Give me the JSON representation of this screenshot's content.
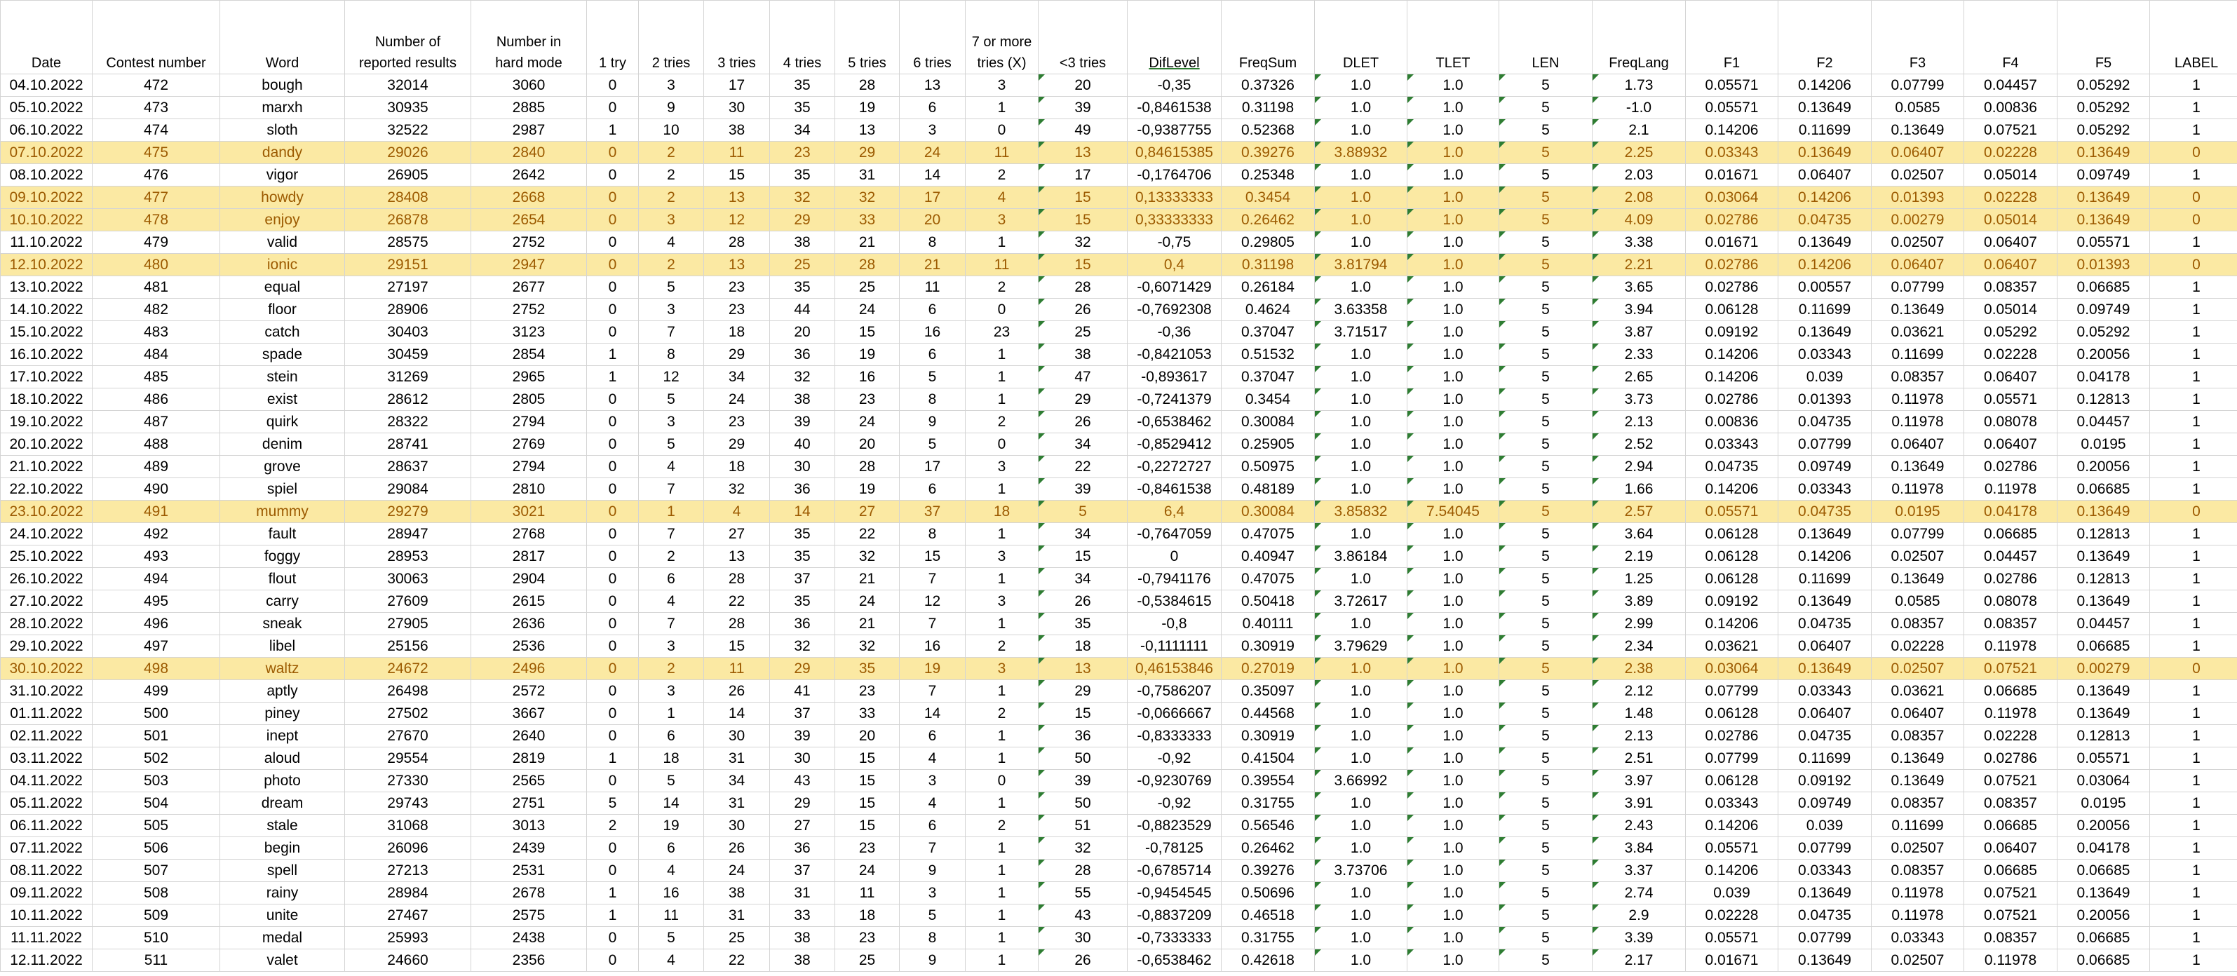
{
  "headers": [
    "Date",
    "Contest number",
    "Word",
    "Number in\nreported results",
    "Number in\nhard mode",
    "1 try",
    "2 tries",
    "3 tries",
    "4 tries",
    "5 tries",
    "6 tries",
    "7 or more\ntries (X)",
    "<3 tries",
    "DifLevel",
    "FreqSum",
    "DLET",
    "TLET",
    "LEN",
    "FreqLang",
    "F1",
    "F2",
    "F3",
    "F4",
    "F5",
    "LABEL"
  ],
  "header_display": [
    "Date",
    "Contest number",
    "Word",
    "Number of\nreported results",
    "Number in\nhard mode",
    "1 try",
    "2 tries",
    "3 tries",
    "4 tries",
    "5 tries",
    "6 tries",
    "7 or more\ntries (X)",
    "<3 tries",
    "DifLevel",
    "FreqSum",
    "DLET",
    "TLET",
    "LEN",
    "FreqLang",
    "F1",
    "F2",
    "F3",
    "F4",
    "F5",
    "LABEL"
  ],
  "rows": [
    [
      "04.10.2022",
      "472",
      "bough",
      "32014",
      "3060",
      "0",
      "3",
      "17",
      "35",
      "28",
      "13",
      "3",
      "20",
      "-0,35",
      "0.37326",
      "1.0",
      "1.0",
      "5",
      "1.73",
      "0.05571",
      "0.14206",
      "0.07799",
      "0.04457",
      "0.05292",
      "1"
    ],
    [
      "05.10.2022",
      "473",
      "marxh",
      "30935",
      "2885",
      "0",
      "9",
      "30",
      "35",
      "19",
      "6",
      "1",
      "39",
      "-0,8461538",
      "0.31198",
      "1.0",
      "1.0",
      "5",
      "-1.0",
      "0.05571",
      "0.13649",
      "0.0585",
      "0.00836",
      "0.05292",
      "1"
    ],
    [
      "06.10.2022",
      "474",
      "sloth",
      "32522",
      "2987",
      "1",
      "10",
      "38",
      "34",
      "13",
      "3",
      "0",
      "49",
      "-0,9387755",
      "0.52368",
      "1.0",
      "1.0",
      "5",
      "2.1",
      "0.14206",
      "0.11699",
      "0.13649",
      "0.07521",
      "0.05292",
      "1"
    ],
    [
      "07.10.2022",
      "475",
      "dandy",
      "29026",
      "2840",
      "0",
      "2",
      "11",
      "23",
      "29",
      "24",
      "11",
      "13",
      "0,84615385",
      "0.39276",
      "3.88932",
      "1.0",
      "5",
      "2.25",
      "0.03343",
      "0.13649",
      "0.06407",
      "0.02228",
      "0.13649",
      "0"
    ],
    [
      "08.10.2022",
      "476",
      "vigor",
      "26905",
      "2642",
      "0",
      "2",
      "15",
      "35",
      "31",
      "14",
      "2",
      "17",
      "-0,1764706",
      "0.25348",
      "1.0",
      "1.0",
      "5",
      "2.03",
      "0.01671",
      "0.06407",
      "0.02507",
      "0.05014",
      "0.09749",
      "1"
    ],
    [
      "09.10.2022",
      "477",
      "howdy",
      "28408",
      "2668",
      "0",
      "2",
      "13",
      "32",
      "32",
      "17",
      "4",
      "15",
      "0,13333333",
      "0.3454",
      "1.0",
      "1.0",
      "5",
      "2.08",
      "0.03064",
      "0.14206",
      "0.01393",
      "0.02228",
      "0.13649",
      "0"
    ],
    [
      "10.10.2022",
      "478",
      "enjoy",
      "26878",
      "2654",
      "0",
      "3",
      "12",
      "29",
      "33",
      "20",
      "3",
      "15",
      "0,33333333",
      "0.26462",
      "1.0",
      "1.0",
      "5",
      "4.09",
      "0.02786",
      "0.04735",
      "0.00279",
      "0.05014",
      "0.13649",
      "0"
    ],
    [
      "11.10.2022",
      "479",
      "valid",
      "28575",
      "2752",
      "0",
      "4",
      "28",
      "38",
      "21",
      "8",
      "1",
      "32",
      "-0,75",
      "0.29805",
      "1.0",
      "1.0",
      "5",
      "3.38",
      "0.01671",
      "0.13649",
      "0.02507",
      "0.06407",
      "0.05571",
      "1"
    ],
    [
      "12.10.2022",
      "480",
      "ionic",
      "29151",
      "2947",
      "0",
      "2",
      "13",
      "25",
      "28",
      "21",
      "11",
      "15",
      "0,4",
      "0.31198",
      "3.81794",
      "1.0",
      "5",
      "2.21",
      "0.02786",
      "0.14206",
      "0.06407",
      "0.06407",
      "0.01393",
      "0"
    ],
    [
      "13.10.2022",
      "481",
      "equal",
      "27197",
      "2677",
      "0",
      "5",
      "23",
      "35",
      "25",
      "11",
      "2",
      "28",
      "-0,6071429",
      "0.26184",
      "1.0",
      "1.0",
      "5",
      "3.65",
      "0.02786",
      "0.00557",
      "0.07799",
      "0.08357",
      "0.06685",
      "1"
    ],
    [
      "14.10.2022",
      "482",
      "floor",
      "28906",
      "2752",
      "0",
      "3",
      "23",
      "44",
      "24",
      "6",
      "0",
      "26",
      "-0,7692308",
      "0.4624",
      "3.63358",
      "1.0",
      "5",
      "3.94",
      "0.06128",
      "0.11699",
      "0.13649",
      "0.05014",
      "0.09749",
      "1"
    ],
    [
      "15.10.2022",
      "483",
      "catch",
      "30403",
      "3123",
      "0",
      "7",
      "18",
      "20",
      "15",
      "16",
      "23",
      "25",
      "-0,36",
      "0.37047",
      "3.71517",
      "1.0",
      "5",
      "3.87",
      "0.09192",
      "0.13649",
      "0.03621",
      "0.05292",
      "0.05292",
      "1"
    ],
    [
      "16.10.2022",
      "484",
      "spade",
      "30459",
      "2854",
      "1",
      "8",
      "29",
      "36",
      "19",
      "6",
      "1",
      "38",
      "-0,8421053",
      "0.51532",
      "1.0",
      "1.0",
      "5",
      "2.33",
      "0.14206",
      "0.03343",
      "0.11699",
      "0.02228",
      "0.20056",
      "1"
    ],
    [
      "17.10.2022",
      "485",
      "stein",
      "31269",
      "2965",
      "1",
      "12",
      "34",
      "32",
      "16",
      "5",
      "1",
      "47",
      "-0,893617",
      "0.37047",
      "1.0",
      "1.0",
      "5",
      "2.65",
      "0.14206",
      "0.039",
      "0.08357",
      "0.06407",
      "0.04178",
      "1"
    ],
    [
      "18.10.2022",
      "486",
      "exist",
      "28612",
      "2805",
      "0",
      "5",
      "24",
      "38",
      "23",
      "8",
      "1",
      "29",
      "-0,7241379",
      "0.3454",
      "1.0",
      "1.0",
      "5",
      "3.73",
      "0.02786",
      "0.01393",
      "0.11978",
      "0.05571",
      "0.12813",
      "1"
    ],
    [
      "19.10.2022",
      "487",
      "quirk",
      "28322",
      "2794",
      "0",
      "3",
      "23",
      "39",
      "24",
      "9",
      "2",
      "26",
      "-0,6538462",
      "0.30084",
      "1.0",
      "1.0",
      "5",
      "2.13",
      "0.00836",
      "0.04735",
      "0.11978",
      "0.08078",
      "0.04457",
      "1"
    ],
    [
      "20.10.2022",
      "488",
      "denim",
      "28741",
      "2769",
      "0",
      "5",
      "29",
      "40",
      "20",
      "5",
      "0",
      "34",
      "-0,8529412",
      "0.25905",
      "1.0",
      "1.0",
      "5",
      "2.52",
      "0.03343",
      "0.07799",
      "0.06407",
      "0.06407",
      "0.0195",
      "1"
    ],
    [
      "21.10.2022",
      "489",
      "grove",
      "28637",
      "2794",
      "0",
      "4",
      "18",
      "30",
      "28",
      "17",
      "3",
      "22",
      "-0,2272727",
      "0.50975",
      "1.0",
      "1.0",
      "5",
      "2.94",
      "0.04735",
      "0.09749",
      "0.13649",
      "0.02786",
      "0.20056",
      "1"
    ],
    [
      "22.10.2022",
      "490",
      "spiel",
      "29084",
      "2810",
      "0",
      "7",
      "32",
      "36",
      "19",
      "6",
      "1",
      "39",
      "-0,8461538",
      "0.48189",
      "1.0",
      "1.0",
      "5",
      "1.66",
      "0.14206",
      "0.03343",
      "0.11978",
      "0.11978",
      "0.06685",
      "1"
    ],
    [
      "23.10.2022",
      "491",
      "mummy",
      "29279",
      "3021",
      "0",
      "1",
      "4",
      "14",
      "27",
      "37",
      "18",
      "5",
      "6,4",
      "0.30084",
      "3.85832",
      "7.54045",
      "5",
      "2.57",
      "0.05571",
      "0.04735",
      "0.0195",
      "0.04178",
      "0.13649",
      "0"
    ],
    [
      "24.10.2022",
      "492",
      "fault",
      "28947",
      "2768",
      "0",
      "7",
      "27",
      "35",
      "22",
      "8",
      "1",
      "34",
      "-0,7647059",
      "0.47075",
      "1.0",
      "1.0",
      "5",
      "3.64",
      "0.06128",
      "0.13649",
      "0.07799",
      "0.06685",
      "0.12813",
      "1"
    ],
    [
      "25.10.2022",
      "493",
      "foggy",
      "28953",
      "2817",
      "0",
      "2",
      "13",
      "35",
      "32",
      "15",
      "3",
      "15",
      "0",
      "0.40947",
      "3.86184",
      "1.0",
      "5",
      "2.19",
      "0.06128",
      "0.14206",
      "0.02507",
      "0.04457",
      "0.13649",
      "1"
    ],
    [
      "26.10.2022",
      "494",
      "flout",
      "30063",
      "2904",
      "0",
      "6",
      "28",
      "37",
      "21",
      "7",
      "1",
      "34",
      "-0,7941176",
      "0.47075",
      "1.0",
      "1.0",
      "5",
      "1.25",
      "0.06128",
      "0.11699",
      "0.13649",
      "0.02786",
      "0.12813",
      "1"
    ],
    [
      "27.10.2022",
      "495",
      "carry",
      "27609",
      "2615",
      "0",
      "4",
      "22",
      "35",
      "24",
      "12",
      "3",
      "26",
      "-0,5384615",
      "0.50418",
      "3.72617",
      "1.0",
      "5",
      "3.89",
      "0.09192",
      "0.13649",
      "0.0585",
      "0.08078",
      "0.13649",
      "1"
    ],
    [
      "28.10.2022",
      "496",
      "sneak",
      "27905",
      "2636",
      "0",
      "7",
      "28",
      "36",
      "21",
      "7",
      "1",
      "35",
      "-0,8",
      "0.40111",
      "1.0",
      "1.0",
      "5",
      "2.99",
      "0.14206",
      "0.04735",
      "0.08357",
      "0.08357",
      "0.04457",
      "1"
    ],
    [
      "29.10.2022",
      "497",
      "libel",
      "25156",
      "2536",
      "0",
      "3",
      "15",
      "32",
      "32",
      "16",
      "2",
      "18",
      "-0,1111111",
      "0.30919",
      "3.79629",
      "1.0",
      "5",
      "2.34",
      "0.03621",
      "0.06407",
      "0.02228",
      "0.11978",
      "0.06685",
      "1"
    ],
    [
      "30.10.2022",
      "498",
      "waltz",
      "24672",
      "2496",
      "0",
      "2",
      "11",
      "29",
      "35",
      "19",
      "3",
      "13",
      "0,46153846",
      "0.27019",
      "1.0",
      "1.0",
      "5",
      "2.38",
      "0.03064",
      "0.13649",
      "0.02507",
      "0.07521",
      "0.00279",
      "0"
    ],
    [
      "31.10.2022",
      "499",
      "aptly",
      "26498",
      "2572",
      "0",
      "3",
      "26",
      "41",
      "23",
      "7",
      "1",
      "29",
      "-0,7586207",
      "0.35097",
      "1.0",
      "1.0",
      "5",
      "2.12",
      "0.07799",
      "0.03343",
      "0.03621",
      "0.06685",
      "0.13649",
      "1"
    ],
    [
      "01.11.2022",
      "500",
      "piney",
      "27502",
      "3667",
      "0",
      "1",
      "14",
      "37",
      "33",
      "14",
      "2",
      "15",
      "-0,0666667",
      "0.44568",
      "1.0",
      "1.0",
      "5",
      "1.48",
      "0.06128",
      "0.06407",
      "0.06407",
      "0.11978",
      "0.13649",
      "1"
    ],
    [
      "02.11.2022",
      "501",
      "inept",
      "27670",
      "2640",
      "0",
      "6",
      "30",
      "39",
      "20",
      "6",
      "1",
      "36",
      "-0,8333333",
      "0.30919",
      "1.0",
      "1.0",
      "5",
      "2.13",
      "0.02786",
      "0.04735",
      "0.08357",
      "0.02228",
      "0.12813",
      "1"
    ],
    [
      "03.11.2022",
      "502",
      "aloud",
      "29554",
      "2819",
      "1",
      "18",
      "31",
      "30",
      "15",
      "4",
      "1",
      "50",
      "-0,92",
      "0.41504",
      "1.0",
      "1.0",
      "5",
      "2.51",
      "0.07799",
      "0.11699",
      "0.13649",
      "0.02786",
      "0.05571",
      "1"
    ],
    [
      "04.11.2022",
      "503",
      "photo",
      "27330",
      "2565",
      "0",
      "5",
      "34",
      "43",
      "15",
      "3",
      "0",
      "39",
      "-0,9230769",
      "0.39554",
      "3.66992",
      "1.0",
      "5",
      "3.97",
      "0.06128",
      "0.09192",
      "0.13649",
      "0.07521",
      "0.03064",
      "1"
    ],
    [
      "05.11.2022",
      "504",
      "dream",
      "29743",
      "2751",
      "5",
      "14",
      "31",
      "29",
      "15",
      "4",
      "1",
      "50",
      "-0,92",
      "0.31755",
      "1.0",
      "1.0",
      "5",
      "3.91",
      "0.03343",
      "0.09749",
      "0.08357",
      "0.08357",
      "0.0195",
      "1"
    ],
    [
      "06.11.2022",
      "505",
      "stale",
      "31068",
      "3013",
      "2",
      "19",
      "30",
      "27",
      "15",
      "6",
      "2",
      "51",
      "-0,8823529",
      "0.56546",
      "1.0",
      "1.0",
      "5",
      "2.43",
      "0.14206",
      "0.039",
      "0.11699",
      "0.06685",
      "0.20056",
      "1"
    ],
    [
      "07.11.2022",
      "506",
      "begin",
      "26096",
      "2439",
      "0",
      "6",
      "26",
      "36",
      "23",
      "7",
      "1",
      "32",
      "-0,78125",
      "0.26462",
      "1.0",
      "1.0",
      "5",
      "3.84",
      "0.05571",
      "0.07799",
      "0.02507",
      "0.06407",
      "0.04178",
      "1"
    ],
    [
      "08.11.2022",
      "507",
      "spell",
      "27213",
      "2531",
      "0",
      "4",
      "24",
      "37",
      "24",
      "9",
      "1",
      "28",
      "-0,6785714",
      "0.39276",
      "3.73706",
      "1.0",
      "5",
      "3.37",
      "0.14206",
      "0.03343",
      "0.08357",
      "0.06685",
      "0.06685",
      "1"
    ],
    [
      "09.11.2022",
      "508",
      "rainy",
      "28984",
      "2678",
      "1",
      "16",
      "38",
      "31",
      "11",
      "3",
      "1",
      "55",
      "-0,9454545",
      "0.50696",
      "1.0",
      "1.0",
      "5",
      "2.74",
      "0.039",
      "0.13649",
      "0.11978",
      "0.07521",
      "0.13649",
      "1"
    ],
    [
      "10.11.2022",
      "509",
      "unite",
      "27467",
      "2575",
      "1",
      "11",
      "31",
      "33",
      "18",
      "5",
      "1",
      "43",
      "-0,8837209",
      "0.46518",
      "1.0",
      "1.0",
      "5",
      "2.9",
      "0.02228",
      "0.04735",
      "0.11978",
      "0.07521",
      "0.20056",
      "1"
    ],
    [
      "11.11.2022",
      "510",
      "medal",
      "25993",
      "2438",
      "0",
      "5",
      "25",
      "38",
      "23",
      "8",
      "1",
      "30",
      "-0,7333333",
      "0.31755",
      "1.0",
      "1.0",
      "5",
      "3.39",
      "0.05571",
      "0.07799",
      "0.03343",
      "0.08357",
      "0.06685",
      "1"
    ],
    [
      "12.11.2022",
      "511",
      "valet",
      "24660",
      "2356",
      "0",
      "4",
      "22",
      "38",
      "25",
      "9",
      "1",
      "26",
      "-0,6538462",
      "0.42618",
      "1.0",
      "1.0",
      "5",
      "2.17",
      "0.01671",
      "0.13649",
      "0.02507",
      "0.11978",
      "0.06685",
      "1"
    ]
  ],
  "highlighted_rows": [
    3,
    5,
    6,
    8,
    19,
    26
  ],
  "colors": {
    "highlight_fill": "#fbe9a3",
    "highlight_text": "#9c5a00",
    "indicator": "#2e7d32"
  }
}
